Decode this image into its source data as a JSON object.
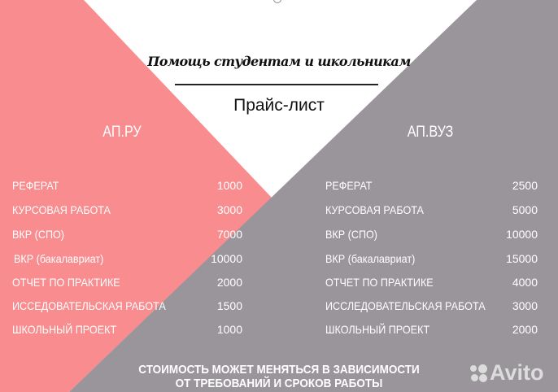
{
  "header": {
    "tagline": "Помощь студентам и школьникам",
    "title": "Прайс-лист"
  },
  "colors": {
    "pink": "#f98c8f",
    "grey": "#9a949b",
    "background": "#ffffff"
  },
  "columns": [
    {
      "title": "АП.РУ",
      "items": [
        {
          "label": "РЕФЕРАТ",
          "price": "1000"
        },
        {
          "label": "КУРСОВАЯ РАБОТА",
          "price": "3000"
        },
        {
          "label": "ВКР (СПО)",
          "price": "7000"
        },
        {
          "label": "ВКР (бакалавриат)",
          "price": "10000"
        },
        {
          "label": "ОТЧЕТ ПО ПРАКТИКЕ",
          "price": "2000"
        },
        {
          "label": "ИССЕДОВАТЕЛЬСКАЯ РАБОТА",
          "price": "1500"
        },
        {
          "label": "ШКОЛЬНЫЙ ПРОЕКТ",
          "price": "1000"
        }
      ]
    },
    {
      "title": "АП.ВУЗ",
      "items": [
        {
          "label": "РЕФЕРАТ",
          "price": "2500"
        },
        {
          "label": "КУРСОВАЯ РАБОТА",
          "price": "5000"
        },
        {
          "label": "ВКР (СПО)",
          "price": "10000"
        },
        {
          "label": "ВКР (бакалавриат)",
          "price": "15000"
        },
        {
          "label": "ОТЧЕТ ПО ПРАКТИКЕ",
          "price": "4000"
        },
        {
          "label": "ИССЛЕДОВАТЕЛЬСКАЯ РАБОТА",
          "price": "3000"
        },
        {
          "label": "ШКОЛЬНЫЙ ПРОЕКТ",
          "price": "2000"
        }
      ]
    }
  ],
  "footer": {
    "note_line1": "СТОИМОСТЬ МОЖЕТ МЕНЯТЬСЯ В ЗАВИСИМОСТИ",
    "note_line2": "ОТ ТРЕБОВАНИЙ И СРОКОВ РАБОТЫ"
  },
  "watermark": {
    "text": "Avito",
    "icon": "avito-dots-icon"
  }
}
